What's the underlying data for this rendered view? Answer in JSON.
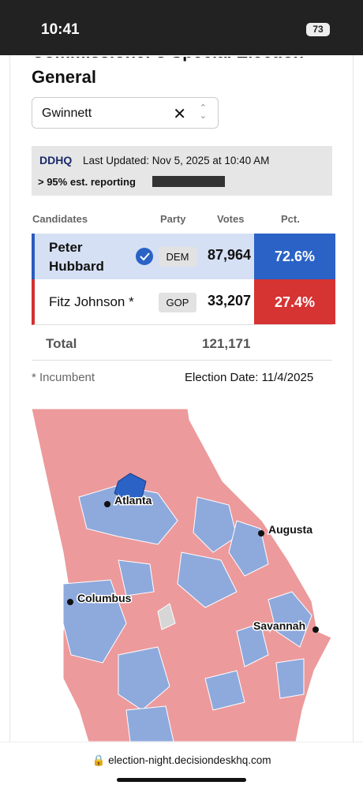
{
  "status_bar": {
    "time": "10:41",
    "battery": "73"
  },
  "page": {
    "title_line1": "Commissioner's Special Election",
    "title_line2": "General",
    "county_select": "Gwinnett",
    "source": {
      "logo": "DDHQ",
      "last_updated": "Last Updated: Nov 5, 2025 at 10:40 AM",
      "reporting": "> 95% est. reporting"
    },
    "footnote": "* Incumbent",
    "election_date": "Election Date: 11/4/2025"
  },
  "table": {
    "headers": [
      "Candidates",
      "Party",
      "Votes",
      "Pct."
    ],
    "rows": [
      [
        "Peter Hubbard",
        "DEM",
        "87,964",
        "72.6%"
      ],
      [
        "Fitz Johnson *",
        "GOP",
        "33,207",
        "27.4%"
      ]
    ],
    "total": [
      "Total",
      "121,171"
    ]
  },
  "map": {
    "cities": [
      "Atlanta",
      "Augusta",
      "Columbus",
      "Savannah"
    ]
  },
  "browser": {
    "url": "election-night.decisiondeskhq.com"
  }
}
